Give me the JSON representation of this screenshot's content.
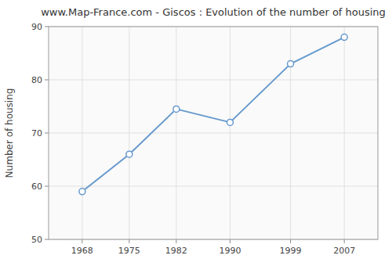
{
  "chart_data": {
    "type": "line",
    "title": "www.Map-France.com - Giscos : Evolution of the number of housing",
    "ylabel": "Number of housing",
    "x": [
      1968,
      1975,
      1982,
      1990,
      1999,
      2007
    ],
    "values": [
      59,
      66,
      74.5,
      72,
      83,
      88
    ],
    "color": "#6699cc",
    "marker": "circle",
    "xlim": [
      1963,
      2012
    ],
    "ylim": [
      50,
      90
    ],
    "xticks": [
      1968,
      1975,
      1982,
      1990,
      1999,
      2007
    ],
    "yticks": [
      50,
      60,
      70,
      80,
      90
    ],
    "grid": true
  }
}
